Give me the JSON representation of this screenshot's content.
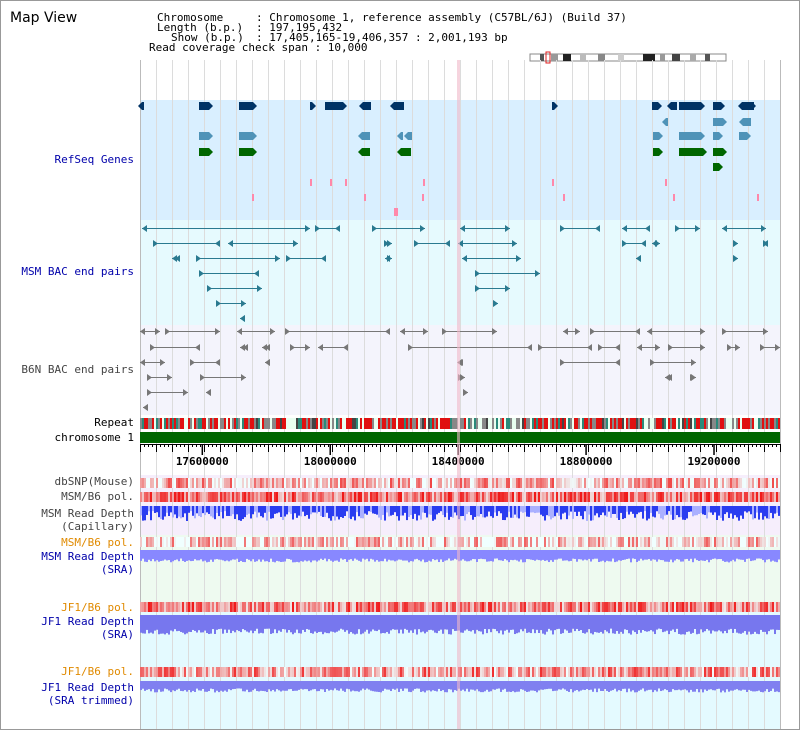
{
  "app": {
    "title": "Map View"
  },
  "info": {
    "chromosome_key": "Chromosome",
    "chromosome_val": ": Chromosome 1, reference assembly (C57BL/6J) (Build 37)",
    "length_key": "Length (b.p.)",
    "length_val": ": 197,195,432",
    "show_key": "Show (b.p.)",
    "show_val": ": 17,405,165-19,406,357 : 2,001,193 bp",
    "coverage_line": "Read coverage check span : 10,000"
  },
  "tracks": {
    "refseq": "RefSeq Genes",
    "msm_bac": "MSM BAC end pairs",
    "b6n_bac": "B6N BAC end pairs",
    "repeat": "Repeat",
    "chromosome": "chromosome 1",
    "dbsnp": "dbSNP(Mouse)",
    "msm_b6_pol_1": "MSM/B6 pol.",
    "msm_read_depth_cap_1": "MSM Read Depth",
    "msm_read_depth_cap_2": "(Capillary)",
    "msm_b6_pol_2": "MSM/B6 pol.",
    "msm_read_depth_sra_1": "MSM Read Depth",
    "msm_read_depth_sra_2": "(SRA)",
    "jf1_b6_pol_1": "JF1/B6 pol.",
    "jf1_read_depth_sra_1": "JF1 Read Depth",
    "jf1_read_depth_sra_2": "(SRA)",
    "jf1_b6_pol_2": "JF1/B6 pol.",
    "jf1_read_depth_trim_1": "JF1 Read Depth",
    "jf1_read_depth_trim_2": "(SRA trimmed)"
  },
  "axis": {
    "ticks": [
      17600000,
      18000000,
      18400000,
      18800000,
      19200000
    ],
    "range": [
      17405165,
      19406357
    ]
  },
  "colors": {
    "gene_navy": "#003366",
    "gene_teal": "#4f93b8",
    "gene_green": "#006600",
    "bac_teal": "#2a7a90",
    "chrom_green": "#006600",
    "depth_blue": "#3355ff",
    "depth_light": "#8888ff"
  }
}
